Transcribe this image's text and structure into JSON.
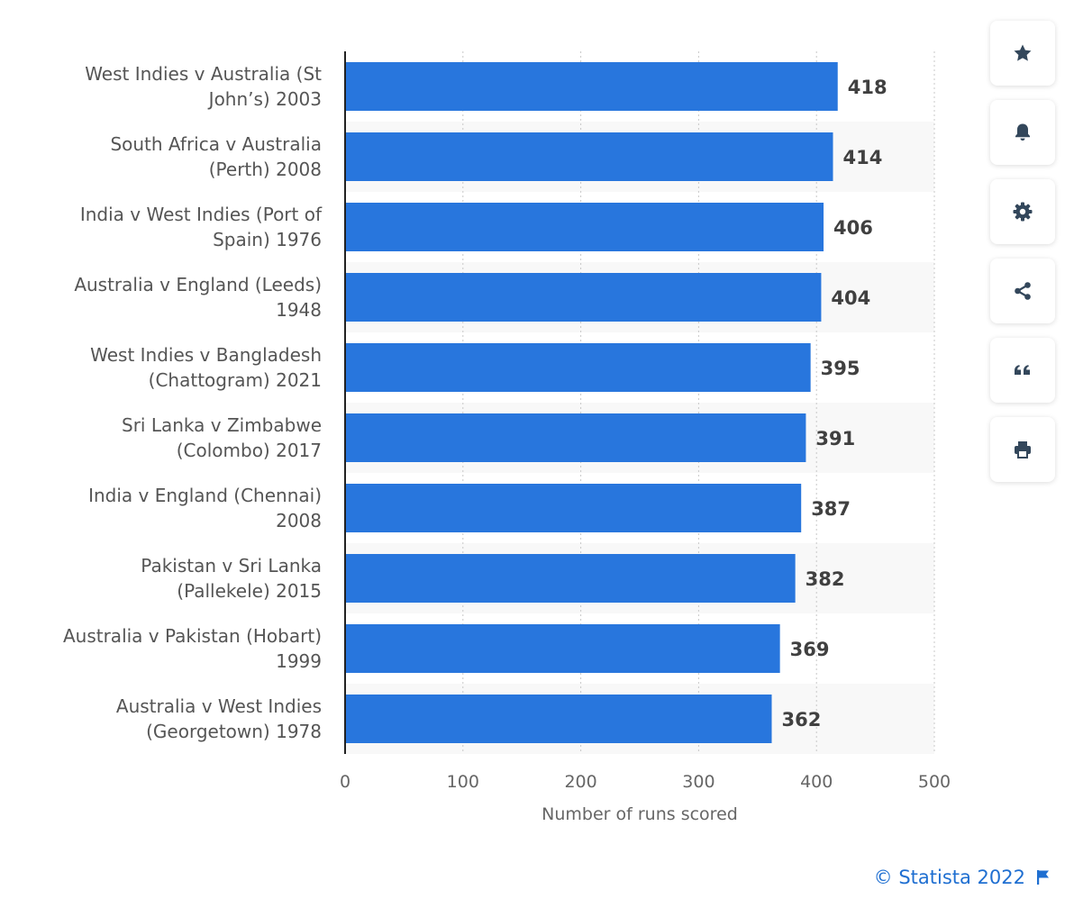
{
  "chart_data": {
    "type": "bar",
    "orientation": "horizontal",
    "categories": [
      [
        "West Indies v Australia (St",
        "John’s) 2003"
      ],
      [
        "South Africa v Australia",
        "(Perth) 2008"
      ],
      [
        "India v West Indies (Port of",
        "Spain) 1976"
      ],
      [
        "Australia v England (Leeds)",
        "1948"
      ],
      [
        "West Indies v Bangladesh",
        "(Chattogram) 2021"
      ],
      [
        "Sri Lanka v Zimbabwe",
        "(Colombo) 2017"
      ],
      [
        "India v England (Chennai)",
        "2008"
      ],
      [
        "Pakistan v Sri Lanka",
        "(Pallekele) 2015"
      ],
      [
        "Australia v Pakistan (Hobart)",
        "1999"
      ],
      [
        "Australia v West Indies",
        "(Georgetown) 1978"
      ]
    ],
    "values": [
      418,
      414,
      406,
      404,
      395,
      391,
      387,
      382,
      369,
      362
    ],
    "xlabel": "Number of runs scored",
    "xlim": [
      0,
      500
    ],
    "xticks": [
      0,
      100,
      200,
      300,
      400,
      500
    ],
    "grid": true,
    "bar_color": "#2876dd"
  },
  "sidebar": {
    "buttons": [
      {
        "icon": "star-icon",
        "name": "favorite-button"
      },
      {
        "icon": "bell-icon",
        "name": "notification-button"
      },
      {
        "icon": "gear-icon",
        "name": "settings-button"
      },
      {
        "icon": "share-icon",
        "name": "share-button"
      },
      {
        "icon": "quote-icon",
        "name": "cite-button"
      },
      {
        "icon": "print-icon",
        "name": "print-button"
      }
    ]
  },
  "footer": {
    "copyright": "© Statista 2022",
    "icon": "flag-icon",
    "color": "#1f6fd1"
  }
}
